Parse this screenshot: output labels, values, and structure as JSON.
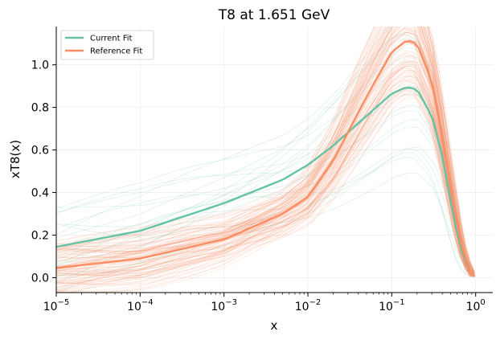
{
  "chart_data": {
    "type": "line",
    "title": "T8 at 1.651 GeV",
    "xlabel": "x",
    "ylabel": "xT8(x)",
    "xscale": "log",
    "xlim": [
      1e-05,
      1.6
    ],
    "ylim": [
      -0.07,
      1.18
    ],
    "x_ticks": [
      {
        "value": 1e-05,
        "base": "10",
        "exp": "−5"
      },
      {
        "value": 0.0001,
        "base": "10",
        "exp": "−4"
      },
      {
        "value": 0.001,
        "base": "10",
        "exp": "−3"
      },
      {
        "value": 0.01,
        "base": "10",
        "exp": "−2"
      },
      {
        "value": 0.1,
        "base": "10",
        "exp": "−1"
      },
      {
        "value": 1,
        "base": "10",
        "exp": "0"
      }
    ],
    "y_ticks": [
      {
        "value": 0.0,
        "label": "0.0"
      },
      {
        "value": 0.2,
        "label": "0.2"
      },
      {
        "value": 0.4,
        "label": "0.4"
      },
      {
        "value": 0.6,
        "label": "0.6"
      },
      {
        "value": 0.8,
        "label": "0.8"
      },
      {
        "value": 1.0,
        "label": "1.0"
      }
    ],
    "grid": true,
    "legend_position": "top-left",
    "series": [
      {
        "name": "Current Fit",
        "color": "#66c2a5",
        "x": [
          1e-05,
          0.0001,
          0.001,
          0.005,
          0.01,
          0.02,
          0.05,
          0.1,
          0.15,
          0.2,
          0.3,
          0.4,
          0.5,
          0.6,
          0.7,
          0.8,
          0.9,
          0.97
        ],
        "y": [
          0.145,
          0.22,
          0.35,
          0.46,
          0.53,
          0.62,
          0.76,
          0.865,
          0.895,
          0.885,
          0.76,
          0.57,
          0.37,
          0.21,
          0.11,
          0.055,
          0.02,
          0.005
        ]
      },
      {
        "name": "Reference Fit",
        "color": "#fc8d62",
        "x": [
          1e-05,
          0.0001,
          0.001,
          0.005,
          0.01,
          0.02,
          0.05,
          0.1,
          0.15,
          0.2,
          0.3,
          0.4,
          0.5,
          0.6,
          0.7,
          0.8,
          0.9,
          0.97
        ],
        "y": [
          0.045,
          0.09,
          0.18,
          0.3,
          0.38,
          0.55,
          0.85,
          1.06,
          1.115,
          1.1,
          0.92,
          0.66,
          0.43,
          0.25,
          0.13,
          0.06,
          0.02,
          0.005
        ]
      }
    ],
    "replica_bands": {
      "current_fit_color": "#66c2a5",
      "reference_fit_color": "#fc8d62",
      "current_fit_replicas": 20,
      "reference_fit_replicas": 100
    }
  }
}
